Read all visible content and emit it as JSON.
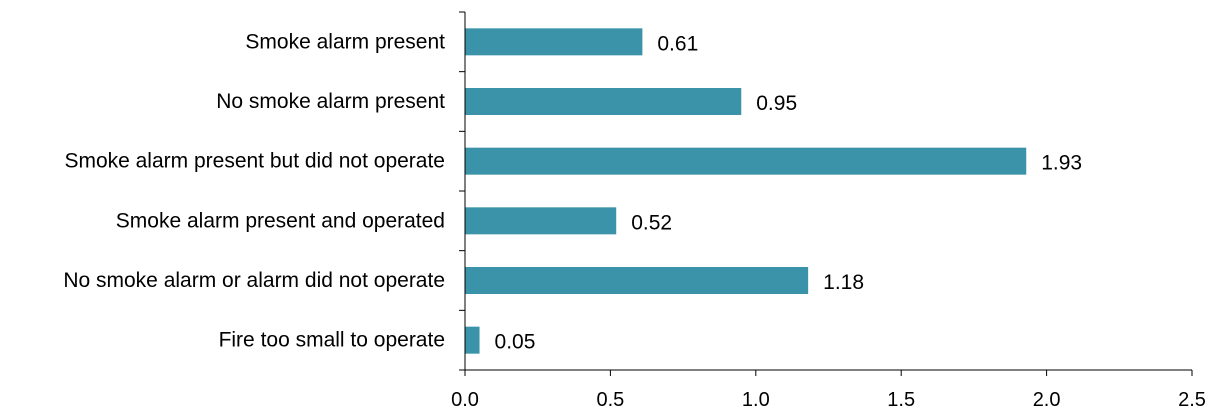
{
  "chart_data": {
    "type": "bar",
    "orientation": "horizontal",
    "categories": [
      "Smoke alarm present",
      "No smoke alarm present",
      "Smoke alarm present but did not operate",
      "Smoke alarm present and operated",
      "No smoke alarm or alarm did not operate",
      "Fire too small to operate"
    ],
    "values": [
      0.61,
      0.95,
      1.93,
      0.52,
      1.18,
      0.05
    ],
    "value_labels": [
      "0.61",
      "0.95",
      "1.93",
      "0.52",
      "1.18",
      "0.05"
    ],
    "xlim": [
      0,
      2.5
    ],
    "xticks": [
      0,
      0.5,
      1.0,
      1.5,
      2.0,
      2.5
    ],
    "xtick_labels": [
      "0.0",
      "0.5",
      "1.0",
      "1.5",
      "2.0",
      "2.5"
    ],
    "grid": false,
    "legend": "none",
    "colors": {
      "bar": "#3a93a8"
    }
  }
}
